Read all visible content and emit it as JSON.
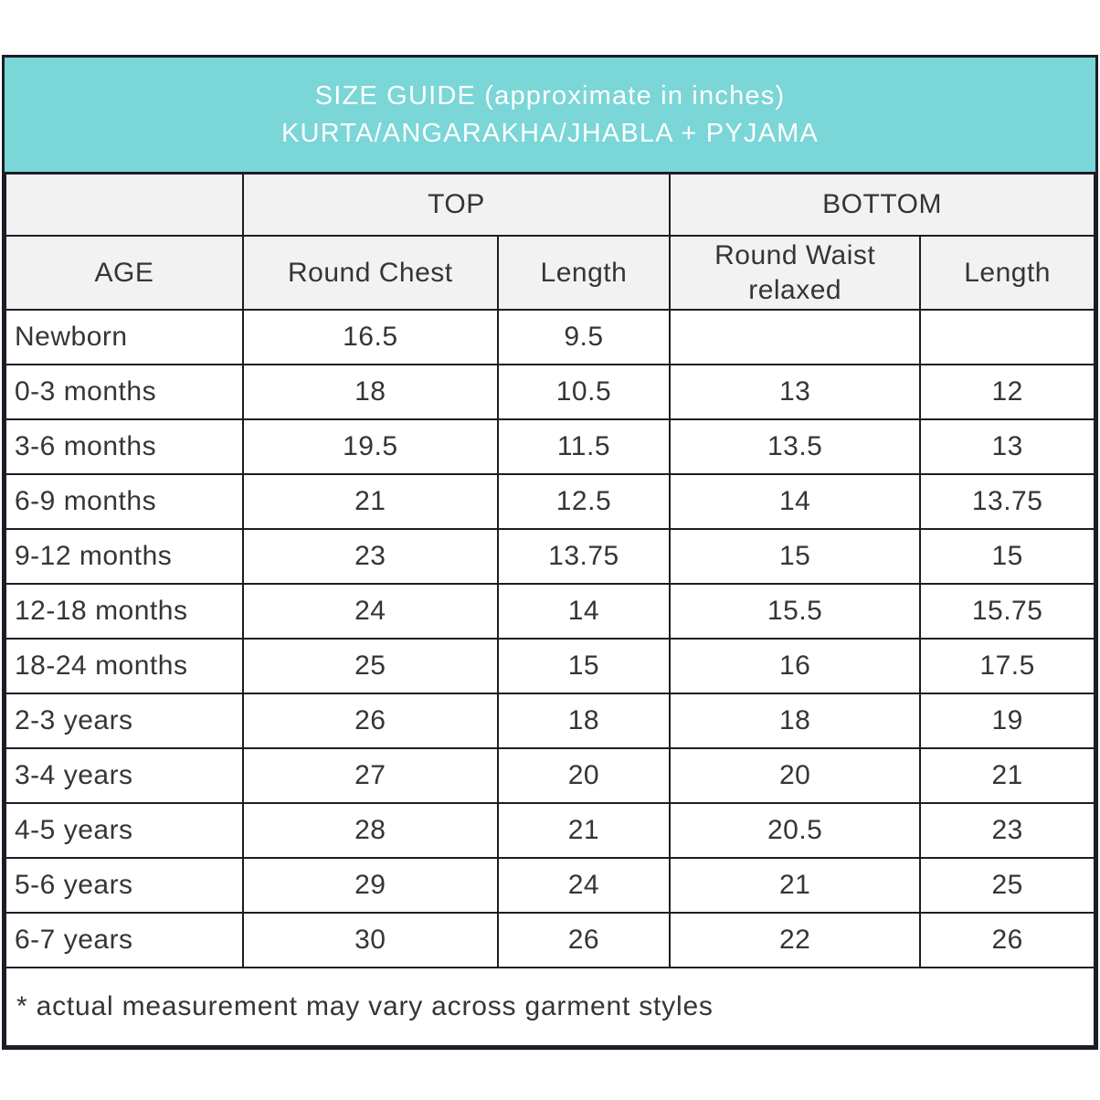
{
  "colors": {
    "banner_bg": "#7AD6D7",
    "banner_text": "#FFFFFF",
    "header_bg": "#F2F2F2",
    "border": "#1D1D25",
    "body_text": "#353538",
    "row_bg": "#FFFFFF"
  },
  "chart_data": {
    "type": "table",
    "title": "SIZE GUIDE (approximate in inches)",
    "subtitle": "KURTA/ANGARAKHA/JHABLA + PYJAMA",
    "column_groups": [
      {
        "label": "",
        "span": 1
      },
      {
        "label": "TOP",
        "span": 2
      },
      {
        "label": "BOTTOM",
        "span": 2
      }
    ],
    "columns": [
      "AGE",
      "Round Chest",
      "Length",
      "Round Waist relaxed",
      "Length"
    ],
    "rows": [
      [
        "Newborn",
        "16.5",
        "9.5",
        "",
        ""
      ],
      [
        "0-3 months",
        "18",
        "10.5",
        "13",
        "12"
      ],
      [
        "3-6 months",
        "19.5",
        "11.5",
        "13.5",
        "13"
      ],
      [
        "6-9 months",
        "21",
        "12.5",
        "14",
        "13.75"
      ],
      [
        "9-12 months",
        "23",
        "13.75",
        "15",
        "15"
      ],
      [
        "12-18 months",
        "24",
        "14",
        "15.5",
        "15.75"
      ],
      [
        "18-24 months",
        "25",
        "15",
        "16",
        "17.5"
      ],
      [
        "2-3 years",
        "26",
        "18",
        "18",
        "19"
      ],
      [
        "3-4 years",
        "27",
        "20",
        "20",
        "21"
      ],
      [
        "4-5 years",
        "28",
        "21",
        "20.5",
        "23"
      ],
      [
        "5-6 years",
        "29",
        "24",
        "21",
        "25"
      ],
      [
        "6-7 years",
        "30",
        "26",
        "22",
        "26"
      ]
    ],
    "footnote": "* actual measurement may vary across garment styles"
  }
}
